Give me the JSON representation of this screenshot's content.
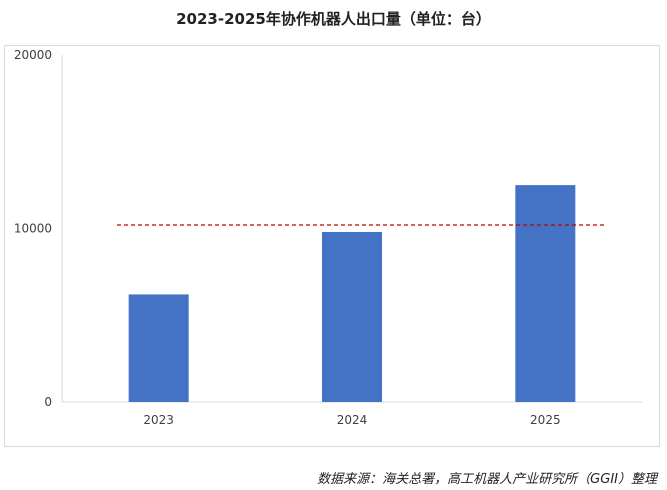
{
  "chart_data": {
    "type": "bar",
    "title": "2023-2025年协作机器人出口量（单位：台）",
    "categories": [
      "2023",
      "2024",
      "2025"
    ],
    "values": [
      6200,
      9800,
      12500
    ],
    "ylim": [
      0,
      20000
    ],
    "yticks": [
      0,
      10000,
      20000
    ],
    "ytick_labels": [
      "0",
      "10000",
      "20000"
    ],
    "reference_line": {
      "value": 10200,
      "style": "dashed",
      "color": "#c00000"
    },
    "bar_color": "#4472c4",
    "axis_color": "#d9d9d9",
    "grid": false,
    "legend": "none"
  },
  "source_note": "数据来源：海关总署，高工机器人产业研究所（GGII）整理"
}
